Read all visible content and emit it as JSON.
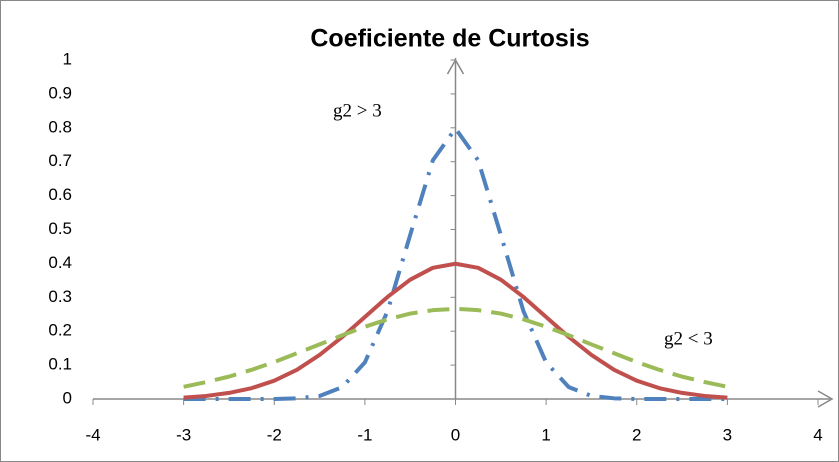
{
  "chart_data": {
    "type": "line",
    "title": "Coeficiente de Curtosis",
    "x": [
      -3,
      -2.75,
      -2.5,
      -2.25,
      -2,
      -1.75,
      -1.5,
      -1.25,
      -1,
      -0.75,
      -0.5,
      -0.25,
      0,
      0.25,
      0.5,
      0.75,
      1,
      1.25,
      1.5,
      1.75,
      2,
      2.25,
      2.5,
      2.75,
      3
    ],
    "series": [
      {
        "color": "#4f81bd",
        "style": "dashdot",
        "values": [
          0,
          0,
          0,
          0,
          0,
          0.002,
          0.009,
          0.035,
          0.108,
          0.259,
          0.484,
          0.704,
          0.798,
          0.704,
          0.484,
          0.259,
          0.108,
          0.035,
          0.009,
          0.002,
          0,
          0,
          0,
          0,
          0
        ]
      },
      {
        "color": "#c0504d",
        "style": "solid",
        "values": [
          0.004,
          0.009,
          0.018,
          0.032,
          0.054,
          0.086,
          0.13,
          0.183,
          0.242,
          0.301,
          0.352,
          0.387,
          0.399,
          0.387,
          0.352,
          0.301,
          0.242,
          0.183,
          0.13,
          0.086,
          0.054,
          0.032,
          0.018,
          0.009,
          0.004
        ]
      },
      {
        "color": "#9bbb59",
        "style": "dashed",
        "values": [
          0.036,
          0.05,
          0.066,
          0.086,
          0.109,
          0.135,
          0.161,
          0.188,
          0.213,
          0.235,
          0.252,
          0.262,
          0.266,
          0.262,
          0.252,
          0.235,
          0.213,
          0.188,
          0.161,
          0.135,
          0.109,
          0.086,
          0.066,
          0.05,
          0.036
        ]
      }
    ],
    "annotations": [
      "g2 > 3",
      "g2 < 3"
    ],
    "xlim": [
      -4,
      4
    ],
    "xticks": [
      -4,
      -3,
      -2,
      -1,
      0,
      1,
      2,
      3,
      4
    ],
    "ylim": [
      0,
      1
    ],
    "yticks": [
      0,
      0.1,
      0.2,
      0.3,
      0.4,
      0.5,
      0.6,
      0.7,
      0.8,
      0.9,
      1
    ],
    "grid": false
  }
}
